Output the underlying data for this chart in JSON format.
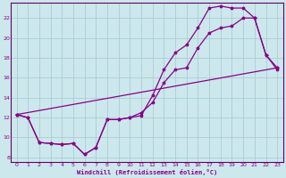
{
  "xlabel": "Windchill (Refroidissement éolien,°C)",
  "bg_color": "#cce8ec",
  "grid_color": "#aacdd4",
  "line_color": "#880088",
  "spine_color": "#660066",
  "xlim": [
    -0.5,
    23.5
  ],
  "ylim": [
    7.5,
    23.5
  ],
  "xticks": [
    0,
    1,
    2,
    3,
    4,
    5,
    6,
    7,
    8,
    9,
    10,
    11,
    12,
    13,
    14,
    15,
    16,
    17,
    18,
    19,
    20,
    21,
    22,
    23
  ],
  "yticks": [
    8,
    10,
    12,
    14,
    16,
    18,
    20,
    22
  ],
  "line1_x": [
    0,
    1,
    2,
    3,
    4,
    5,
    6,
    7,
    8,
    9,
    10,
    11,
    12,
    13,
    14,
    15,
    16,
    17,
    18,
    19,
    20,
    21,
    22,
    23
  ],
  "line1_y": [
    12.3,
    12.0,
    9.5,
    9.4,
    9.3,
    9.4,
    8.3,
    9.0,
    11.8,
    11.8,
    12.0,
    12.2,
    14.2,
    16.8,
    18.5,
    19.3,
    21.0,
    23.0,
    23.2,
    23.0,
    23.0,
    22.0,
    18.3,
    16.8
  ],
  "line2_x": [
    0,
    1,
    2,
    3,
    4,
    5,
    6,
    7,
    8,
    9,
    10,
    11,
    12,
    13,
    14,
    15,
    16,
    17,
    18,
    19,
    20,
    21,
    22,
    23
  ],
  "line2_y": [
    12.3,
    12.0,
    9.5,
    9.4,
    9.3,
    9.4,
    8.3,
    9.0,
    11.8,
    11.8,
    12.0,
    12.5,
    13.5,
    15.5,
    16.8,
    17.0,
    19.0,
    20.5,
    21.0,
    21.2,
    22.0,
    22.0,
    18.3,
    17.0
  ],
  "line3_x": [
    0,
    23
  ],
  "line3_y": [
    12.3,
    17.0
  ]
}
